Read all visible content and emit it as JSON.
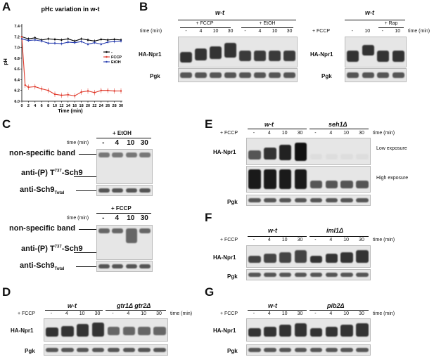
{
  "panels": {
    "A": "A",
    "B": "B",
    "C": "C",
    "D": "D",
    "E": "E",
    "F": "F",
    "G": "G"
  },
  "chart_data": {
    "type": "line",
    "title": "pHc variation in w-t",
    "xlabel": "Time (min)",
    "ylabel": "pH",
    "xlim": [
      0,
      30
    ],
    "ylim": [
      6.0,
      7.4
    ],
    "xticks": [
      0,
      2,
      4,
      6,
      8,
      10,
      12,
      14,
      16,
      18,
      20,
      22,
      24,
      26,
      28,
      30
    ],
    "yticks": [
      6.0,
      6.2,
      6.4,
      6.6,
      6.8,
      7.0,
      7.2,
      7.4
    ],
    "legend_position": "right",
    "series": [
      {
        "name": "-",
        "color": "#000000",
        "x": [
          0,
          2,
          4,
          6,
          8,
          10,
          12,
          14,
          16,
          18,
          20,
          22,
          24,
          26,
          28,
          30
        ],
        "y": [
          7.2,
          7.16,
          7.18,
          7.14,
          7.16,
          7.15,
          7.14,
          7.16,
          7.12,
          7.16,
          7.14,
          7.12,
          7.15,
          7.14,
          7.15,
          7.14
        ]
      },
      {
        "name": "FCCP",
        "color": "#e03a2c",
        "x": [
          0,
          1,
          2,
          4,
          6,
          8,
          10,
          12,
          14,
          16,
          18,
          20,
          22,
          24,
          26,
          28,
          30
        ],
        "y": [
          7.2,
          6.3,
          6.26,
          6.27,
          6.23,
          6.2,
          6.13,
          6.11,
          6.12,
          6.1,
          6.17,
          6.19,
          6.16,
          6.2,
          6.2,
          6.19,
          6.19
        ]
      },
      {
        "name": "EtOH",
        "color": "#2a3fb0",
        "x": [
          0,
          2,
          4,
          6,
          8,
          10,
          12,
          14,
          16,
          18,
          20,
          22,
          24,
          26,
          28,
          30
        ],
        "y": [
          7.16,
          7.13,
          7.14,
          7.12,
          7.08,
          7.08,
          7.07,
          7.1,
          7.09,
          7.11,
          7.06,
          7.09,
          7.06,
          7.1,
          7.11,
          7.12
        ]
      }
    ]
  },
  "B": {
    "strain1": "w-t",
    "strain2": "w-t",
    "fccp": "+ FCCP",
    "etoh": "+ EtOH",
    "rap": "+ Rap",
    "time": "time (min)",
    "time2": "time (min)",
    "fccp_side": "+ FCCP",
    "lanes1": [
      "-",
      "4",
      "10",
      "30",
      "-",
      "4",
      "10",
      "30"
    ],
    "lanes2": [
      "-",
      "10",
      "-",
      "10"
    ],
    "row1": "HA-Npr1",
    "row2": "Pgk",
    "row3": "HA-Npr1",
    "row4": "Pgk"
  },
  "C": {
    "etoh": "+ EtOH",
    "fccp": "+ FCCP",
    "time": "time (min)",
    "lanes": [
      "-",
      "4",
      "10",
      "30"
    ],
    "nsb": "non-specific band",
    "phos_a": "anti-(P) T",
    "phos_sup": "737",
    "phos_b": "-Sch9",
    "total_a": "anti-Sch9",
    "total_sub": "Total"
  },
  "D": {
    "fccp": "+ FCCP",
    "s1": "w-t",
    "s2": "gtr1Δ gtr2Δ",
    "time": "time (min)",
    "lanes": [
      "-",
      "4",
      "10",
      "30",
      "-",
      "4",
      "10",
      "30"
    ],
    "row1": "HA-Npr1",
    "row2": "Pgk"
  },
  "E": {
    "fccp": "+ FCCP",
    "s1": "w-t",
    "s2": "seh1Δ",
    "time": "time (min)",
    "lanes": [
      "-",
      "4",
      "10",
      "30",
      "-",
      "4",
      "10",
      "30"
    ],
    "row1": "HA-Npr1",
    "row2": "Pgk",
    "low": "Low exposure",
    "high": "High exposure"
  },
  "F": {
    "fccp": "+ FCCP",
    "s1": "w-t",
    "s2": "iml1Δ",
    "time": "time (min)",
    "lanes": [
      "-",
      "4",
      "10",
      "30",
      "-",
      "4",
      "10",
      "30"
    ],
    "row1": "HA-Npr1",
    "row2": "Pgk"
  },
  "G": {
    "fccp": "+ FCCP",
    "s1": "w-t",
    "s2": "pib2Δ",
    "time": "time (min)",
    "lanes": [
      "-",
      "4",
      "10",
      "30",
      "-",
      "4",
      "10",
      "30"
    ],
    "row1": "HA-Npr1",
    "row2": "Pgk"
  }
}
